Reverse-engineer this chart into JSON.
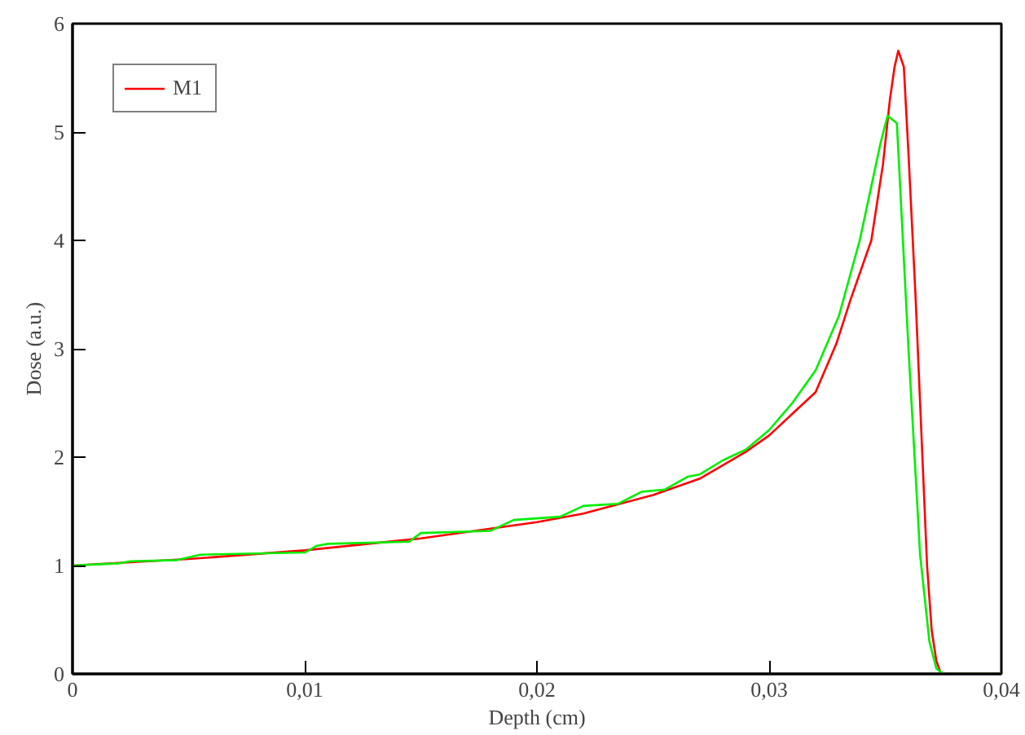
{
  "chart_data": {
    "type": "line",
    "xlabel": "Depth (cm)",
    "ylabel": "Dose (a.u.)",
    "xlim": [
      0,
      0.04
    ],
    "ylim": [
      0,
      6
    ],
    "xticks": [
      0,
      {
        "value": 0.01,
        "label": "0,01"
      },
      {
        "value": 0.02,
        "label": "0,02"
      },
      {
        "value": 0.03,
        "label": "0,03"
      },
      {
        "value": 0.04,
        "label": "0,04"
      }
    ],
    "yticks": [
      0,
      1,
      2,
      3,
      4,
      5,
      6
    ],
    "grid": false,
    "legend": "top left",
    "marker": "none",
    "line_style": "solid",
    "series": [
      {
        "name": "M1",
        "color": "#ff0000",
        "x": [
          0,
          0.005,
          0.01,
          0.015,
          0.02,
          0.022,
          0.025,
          0.027,
          0.0278,
          0.029,
          0.03,
          0.031,
          0.032,
          0.0325,
          0.0329,
          0.0335,
          0.0344,
          0.0349,
          0.0352,
          0.0354,
          0.03556,
          0.0358,
          0.036,
          0.0363,
          0.0366,
          0.0368,
          0.037,
          0.0372,
          0.0374,
          0.04
        ],
        "values": [
          1.0,
          1.06,
          1.14,
          1.25,
          1.4,
          1.48,
          1.65,
          1.8,
          1.9,
          2.05,
          2.2,
          2.4,
          2.6,
          2.85,
          3.05,
          3.45,
          4.0,
          4.7,
          5.3,
          5.6,
          5.75,
          5.6,
          4.8,
          3.5,
          2.0,
          1.0,
          0.4,
          0.12,
          0.0,
          0.0
        ]
      },
      {
        "color": "#00ee00",
        "x": [
          0,
          0.002,
          0.0025,
          0.0045,
          0.0055,
          0.01,
          0.0105,
          0.011,
          0.0145,
          0.015,
          0.018,
          0.019,
          0.021,
          0.022,
          0.0235,
          0.0245,
          0.0255,
          0.0265,
          0.027,
          0.028,
          0.029,
          0.03,
          0.031,
          0.032,
          0.0325,
          0.033,
          0.0339,
          0.0348,
          0.0351,
          0.0355,
          0.036,
          0.0365,
          0.0369,
          0.0372,
          0.0375,
          0.04
        ],
        "values": [
          1.0,
          1.02,
          1.04,
          1.05,
          1.1,
          1.12,
          1.18,
          1.2,
          1.22,
          1.3,
          1.32,
          1.42,
          1.45,
          1.55,
          1.57,
          1.68,
          1.7,
          1.82,
          1.84,
          1.97,
          2.07,
          2.25,
          2.5,
          2.8,
          3.05,
          3.3,
          4.0,
          4.9,
          5.15,
          5.08,
          3.0,
          1.1,
          0.3,
          0.05,
          0.0,
          0.0
        ]
      }
    ]
  }
}
